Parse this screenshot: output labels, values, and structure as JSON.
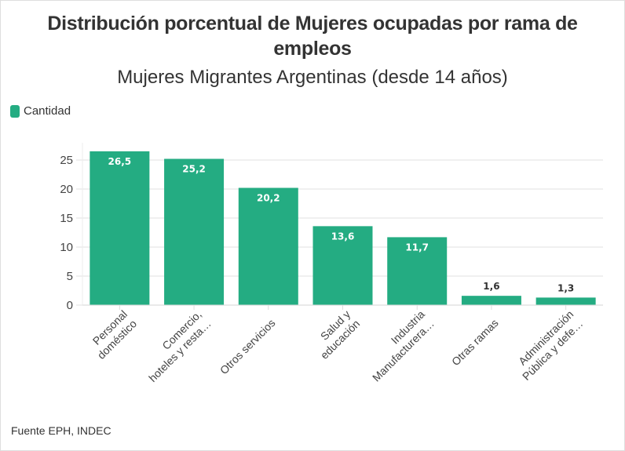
{
  "colors": {
    "bar": "#24ac82",
    "grid": "#ececec",
    "text": "#333333"
  },
  "legend": {
    "label": "Cantidad",
    "icon": "square-swatch"
  },
  "source": "Fuente EPH, INDEC",
  "chart_data": {
    "type": "bar",
    "title": "Distribución porcentual de Mujeres ocupadas por rama de empleos",
    "subtitle": "Mujeres Migrantes Argentinas (desde 14 años)",
    "xlabel": "",
    "ylabel": "",
    "ylim": [
      0,
      27
    ],
    "yticks": [
      "0",
      "5",
      "10",
      "15",
      "20",
      "25"
    ],
    "ytick_values": [
      0,
      5,
      10,
      15,
      20,
      25
    ],
    "grid": true,
    "legend_position": "top-left",
    "categories": [
      [
        "Personal",
        "doméstico"
      ],
      [
        "Comercio,",
        "hoteles y resta…"
      ],
      [
        "Otros servicios"
      ],
      [
        "Salud y",
        "educación"
      ],
      [
        "Industria",
        "Manufacturera…"
      ],
      [
        "Otras ramas"
      ],
      [
        "Administración",
        "Pública y defe…"
      ]
    ],
    "series": [
      {
        "name": "Cantidad",
        "values": [
          26.5,
          25.2,
          20.2,
          13.6,
          11.7,
          1.6,
          1.3
        ],
        "labels": [
          "26,5",
          "25,2",
          "20,2",
          "13,6",
          "11,7",
          "1,6",
          "1,3"
        ]
      }
    ]
  }
}
